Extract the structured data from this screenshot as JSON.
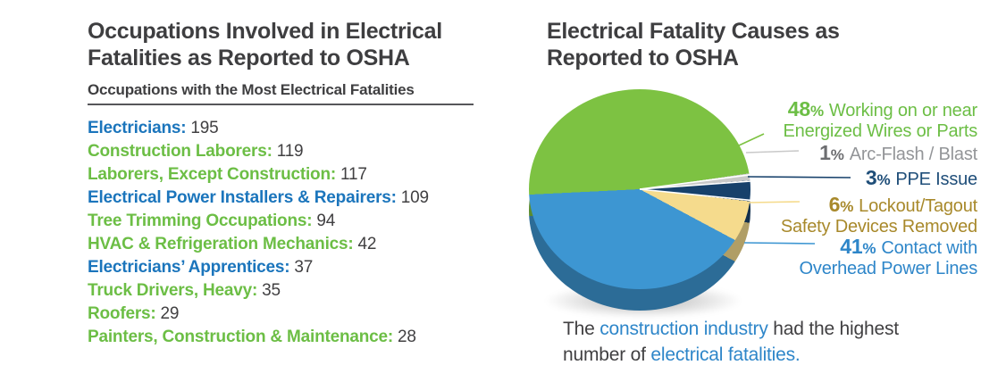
{
  "left": {
    "title": "Occupations Involved in Electrical\nFatalities as Reported to OSHA",
    "subtitle": "Occupations with the Most Electrical Fatalities",
    "items": [
      {
        "label": "Electricians:",
        "value": "195",
        "color": "blue"
      },
      {
        "label": "Construction Laborers:",
        "value": "119",
        "color": "green"
      },
      {
        "label": "Laborers, Except Construction:",
        "value": "117",
        "color": "green"
      },
      {
        "label": "Electrical Power Installers & Repairers:",
        "value": "109",
        "color": "blue"
      },
      {
        "label": "Tree Trimming Occupations:",
        "value": "94",
        "color": "green"
      },
      {
        "label": "HVAC & Refrigeration Mechanics:",
        "value": "42",
        "color": "green"
      },
      {
        "label": "Electricians’ Apprentices:",
        "value": "37",
        "color": "blue"
      },
      {
        "label": "Truck Drivers, Heavy:",
        "value": "35",
        "color": "green"
      },
      {
        "label": "Roofers:",
        "value": "29",
        "color": "green"
      },
      {
        "label": "Painters, Construction & Maintenance:",
        "value": "28",
        "color": "green"
      }
    ]
  },
  "right": {
    "title": "Electrical Fatality Causes as\nReported to OSHA",
    "caption": {
      "parts": [
        {
          "text": "The "
        },
        {
          "text": "construction industry"
        },
        {
          "text": " had the highest\nnumber of "
        },
        {
          "text": "electrical fatalities."
        }
      ]
    }
  },
  "chart_data": {
    "type": "pie",
    "title": "Electrical Fatality Causes as Reported to OSHA",
    "unit": "%",
    "legend_position": "right",
    "slices": [
      {
        "pct": 48,
        "label": "Working on or near\nEnergized Wires or Parts",
        "color": "#7DC242",
        "text_color": "#6CBE45"
      },
      {
        "pct": 1,
        "label": "Arc-Flash / Blast",
        "color": "#C9C9C9",
        "text_color": "#939598",
        "num_color": "#6D6E71"
      },
      {
        "pct": 3,
        "label": "PPE Issue",
        "color": "#17416B",
        "text_color": "#1F4E79"
      },
      {
        "pct": 6,
        "label": "Lockout/Tagout\nSafety Devices Removed",
        "color": "#F5DB8D",
        "text_color": "#A8892B"
      },
      {
        "pct": 41,
        "label": "Contact with\nOverhead Power Lines",
        "color": "#3D96D2",
        "text_color": "#2E86C9"
      }
    ]
  }
}
